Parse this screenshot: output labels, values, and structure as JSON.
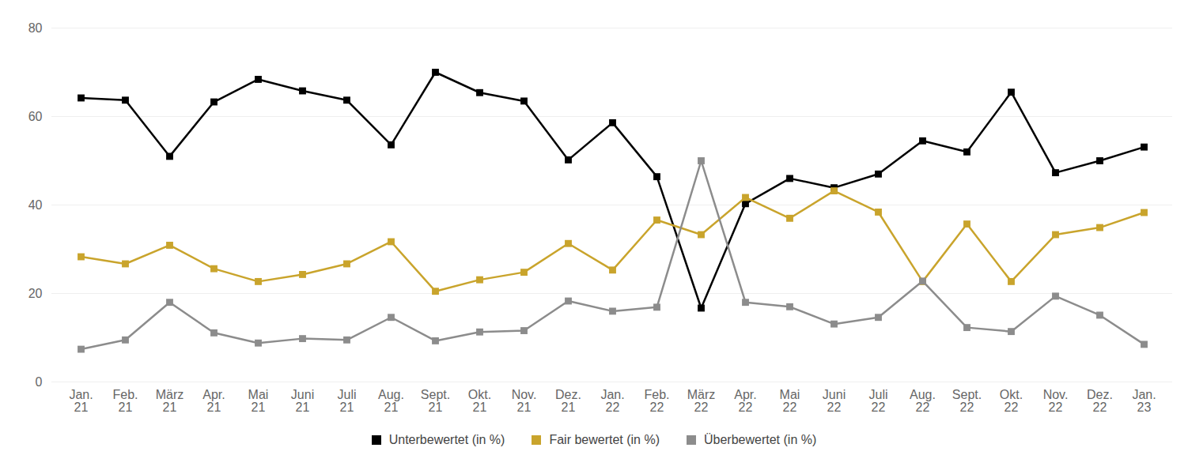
{
  "chart_data": {
    "type": "line",
    "categories": [
      "Jan.\n21",
      "Feb.\n21",
      "März\n21",
      "Apr.\n21",
      "Mai\n21",
      "Juni\n21",
      "Juli\n21",
      "Aug.\n21",
      "Sept.\n21",
      "Okt.\n21",
      "Nov.\n21",
      "Dez.\n21",
      "Jan.\n22",
      "Feb.\n22",
      "März\n22",
      "Apr.\n22",
      "Mai\n22",
      "Juni\n22",
      "Juli\n22",
      "Aug.\n22",
      "Sept.\n22",
      "Okt.\n22",
      "Nov.\n22",
      "Dez.\n22",
      "Jan.\n23"
    ],
    "series": [
      {
        "name": "Unterbewertet (in %)",
        "color": "#000000",
        "values": [
          64.2,
          63.7,
          51,
          63.3,
          68.4,
          65.8,
          63.7,
          53.6,
          70,
          65.4,
          63.5,
          50.2,
          58.6,
          46.4,
          16.7,
          40.3,
          46,
          43.9,
          47,
          54.5,
          52,
          65.5,
          47.3,
          50,
          53.1
        ]
      },
      {
        "name": "Fair bewertet (in %)",
        "color": "#c9a42c",
        "values": [
          28.3,
          26.7,
          30.9,
          25.6,
          22.7,
          24.3,
          26.7,
          31.7,
          20.5,
          23.1,
          24.8,
          31.3,
          25.3,
          36.6,
          33.3,
          41.7,
          37,
          43.2,
          38.4,
          22.7,
          35.7,
          22.7,
          33.3,
          34.9,
          38.3
        ]
      },
      {
        "name": "Überbewertet (in %)",
        "color": "#8c8c8c",
        "values": [
          7.4,
          9.5,
          18,
          11.1,
          8.8,
          9.8,
          9.5,
          14.6,
          9.3,
          11.3,
          11.6,
          18.3,
          16,
          16.9,
          50,
          18,
          17,
          13.1,
          14.6,
          22.8,
          12.3,
          11.4,
          19.4,
          15.1,
          8.5
        ]
      }
    ],
    "ylim": [
      0,
      80
    ],
    "yticks": [
      0,
      20,
      40,
      60,
      80
    ],
    "grid": true,
    "legend": "bottom",
    "marker": "square",
    "line_style": "solid"
  }
}
